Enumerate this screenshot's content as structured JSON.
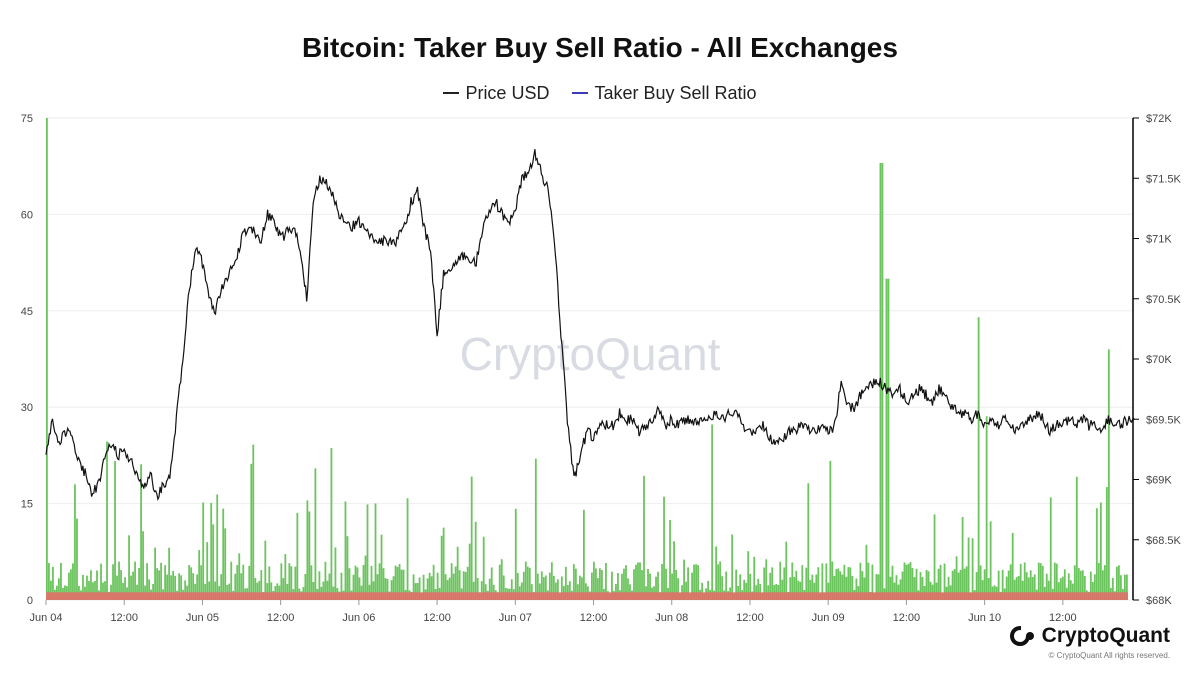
{
  "header": {
    "title": "Bitcoin: Taker Buy Sell Ratio - All Exchanges"
  },
  "legend": [
    {
      "label": "Price USD",
      "color": "#222222"
    },
    {
      "label": "Taker Buy Sell Ratio",
      "color": "#3b3bb3"
    }
  ],
  "watermark": "CryptoQuant",
  "footer": {
    "brand": "CryptoQuant",
    "copyright": "© CryptoQuant All rights reserved."
  },
  "chart_data": {
    "type": "line",
    "x_ticks": [
      "Jun 04",
      "12:00",
      "Jun 05",
      "12:00",
      "Jun 06",
      "12:00",
      "Jun 07",
      "12:00",
      "Jun 08",
      "12:00",
      "Jun 09",
      "12:00",
      "Jun 10",
      "12:00"
    ],
    "y_left": {
      "ticks": [
        "0",
        "15",
        "30",
        "45",
        "60",
        "75"
      ],
      "range": [
        0,
        75
      ]
    },
    "y_right": {
      "ticks": [
        "$68K",
        "$68.5K",
        "$69K",
        "$69.5K",
        "$70K",
        "$70.5K",
        "$71K",
        "$71.5K",
        "$72K"
      ],
      "range": [
        68000,
        72000
      ]
    },
    "colors": {
      "bars_up": "#6cc45e",
      "bars_down": "#e86a6a",
      "price": "#111111"
    },
    "series": [
      {
        "name": "Price USD",
        "axis": "right",
        "x_hours": [
          0,
          1,
          2,
          3,
          4,
          5,
          6,
          7,
          8,
          9,
          10,
          11,
          12,
          13,
          14,
          15,
          16,
          17,
          18,
          19,
          20,
          21,
          22,
          23,
          24,
          25,
          26,
          27,
          28,
          29,
          30,
          31,
          32,
          33,
          34,
          35,
          36,
          37,
          38,
          39,
          40,
          41,
          42,
          43,
          44,
          45,
          46,
          47,
          48,
          49,
          50,
          51,
          52,
          53,
          54,
          55,
          56,
          57,
          58,
          59,
          60,
          61,
          62,
          63,
          64,
          65,
          66,
          67,
          68,
          69,
          70,
          71,
          72,
          73,
          74,
          75,
          76,
          77,
          78,
          79,
          80,
          81,
          82,
          83,
          84,
          85,
          86,
          87,
          88,
          89,
          90,
          91,
          92,
          93,
          94,
          95,
          96,
          97,
          98,
          99,
          100,
          101,
          102,
          103,
          104,
          105,
          106,
          107,
          108,
          109,
          110,
          111,
          112,
          113,
          114,
          115,
          116,
          117,
          118,
          119,
          120,
          121,
          122,
          123,
          124,
          125,
          126,
          127,
          128,
          129,
          130,
          131,
          132,
          133,
          134,
          135,
          136,
          137,
          138,
          139,
          140,
          141,
          142,
          143,
          144,
          145,
          146,
          147,
          148,
          149,
          150,
          151,
          152,
          153,
          154,
          155,
          156,
          157,
          158,
          159,
          160,
          161,
          162,
          163,
          164,
          165,
          166,
          167
        ],
        "values": [
          69250,
          69500,
          69300,
          69400,
          69350,
          69150,
          69050,
          68900,
          68950,
          69200,
          69300,
          69200,
          69250,
          69150,
          69050,
          68950,
          69050,
          68850,
          68950,
          69000,
          69500,
          70000,
          70600,
          70900,
          70800,
          70500,
          70400,
          70600,
          70700,
          70800,
          71000,
          71100,
          71050,
          71000,
          71200,
          71150,
          71000,
          71050,
          71100,
          70900,
          70500,
          71300,
          71500,
          71450,
          71350,
          71200,
          71150,
          71100,
          71150,
          71050,
          71000,
          70950,
          71000,
          70950,
          71000,
          71100,
          71300,
          71400,
          71100,
          70900,
          70200,
          70700,
          70750,
          70800,
          70850,
          70800,
          70800,
          71100,
          71200,
          71300,
          71200,
          71100,
          71250,
          71500,
          71550,
          71700,
          71550,
          71400,
          71000,
          70200,
          69500,
          69000,
          69200,
          69400,
          69350,
          69450,
          69450,
          69450,
          69550,
          69500,
          69500,
          69400,
          69450,
          69500,
          69600,
          69450,
          69500,
          69450,
          69500,
          69500,
          69450,
          69500,
          69500,
          69550,
          69500,
          69550,
          69550,
          69450,
          69400,
          69400,
          69450,
          69350,
          69300,
          69350,
          69400,
          69400,
          69450,
          69400,
          69400,
          69450,
          69400,
          69450,
          69800,
          69600,
          69600,
          69700,
          69750,
          69800,
          69800,
          69750,
          69700,
          69750,
          69650,
          69700,
          69750,
          69700,
          69650,
          69750,
          69700,
          69600,
          69550,
          69550,
          69500,
          69550,
          69450,
          69500,
          69450,
          69500,
          69450,
          69400,
          69450,
          69500,
          69550,
          69500,
          69400,
          69450,
          69450,
          69500,
          69450,
          69500,
          69450,
          69450,
          69400,
          69500,
          69450,
          69450,
          69500,
          69500
        ]
      },
      {
        "name": "Taker Buy Sell Ratio",
        "axis": "left",
        "note_peaks": {
          "Jun 04 00:00": 75,
          "Jun 09 08:00": 68,
          "Jun 09 09:00": 50,
          "Jun 09 23:00": 44,
          "Jun 11 03:00": 39
        }
      }
    ]
  }
}
